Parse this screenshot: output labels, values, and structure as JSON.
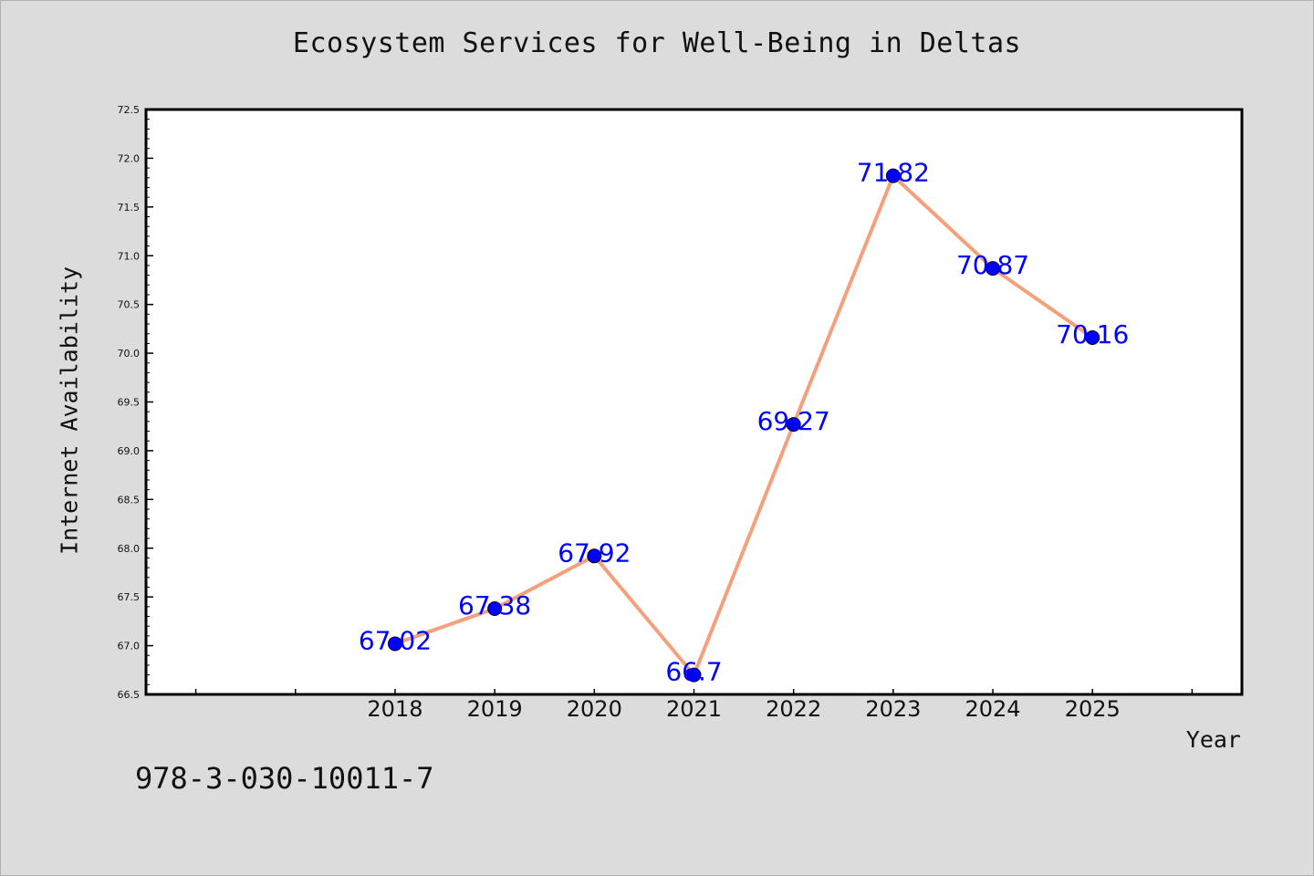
{
  "chart_data": {
    "type": "line",
    "title": "Ecosystem Services for Well-Being in Deltas",
    "xlabel": "Year",
    "ylabel": "Internet Availability",
    "x": [
      2018,
      2019,
      2020,
      2021,
      2022,
      2023,
      2024,
      2025
    ],
    "x_tick_labels": [
      "2018",
      "2019",
      "2020",
      "2021",
      "2022",
      "2023",
      "2024",
      "2025"
    ],
    "xlim": [
      2015.5,
      2026.5
    ],
    "series": [
      {
        "values": [
          67.02,
          67.38,
          67.92,
          66.7,
          69.27,
          71.82,
          70.87,
          70.16
        ],
        "data_labels": [
          "67.02",
          "67.38",
          "67.92",
          "66.7",
          "69.27",
          "71.82",
          "70.87",
          "70.16"
        ],
        "line_color": "#f4a07c",
        "marker_color": "#0000ff"
      }
    ],
    "ylim": [
      66.5,
      72.5
    ],
    "y_tick_labels": [
      "66.5",
      "67.0",
      "67.5",
      "68.0",
      "68.5",
      "69.0",
      "69.5",
      "70.0",
      "70.5",
      "71.0",
      "71.5",
      "72.0",
      "72.5"
    ],
    "grid": false,
    "legend": "none"
  },
  "footnote": "978-3-030-10011-7",
  "colors": {
    "background": "#dcdcdc",
    "plot_background": "#ffffff",
    "line": "#f4a07c",
    "marker": "#0000ff",
    "data_label": "#0000ff"
  }
}
